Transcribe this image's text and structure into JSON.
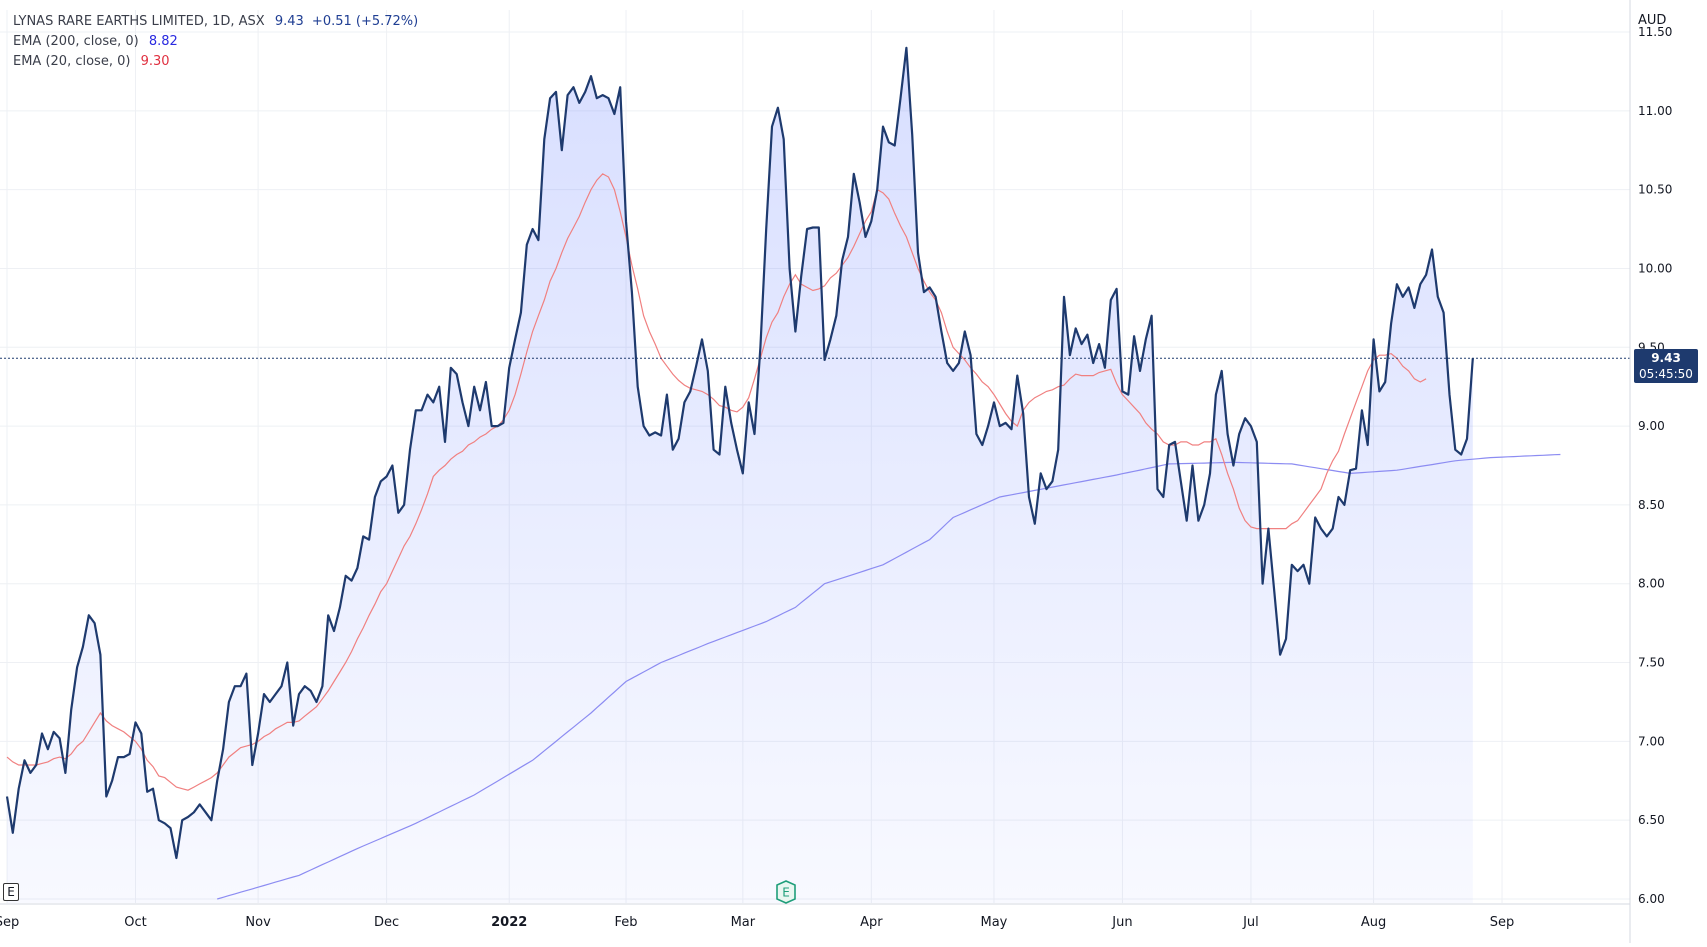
{
  "header": {
    "symbol": "LYNAS RARE EARTHS LIMITED, 1D, ASX",
    "last": "9.43",
    "change": "+0.51 (+5.72%)",
    "ema200_label": "EMA (200, close, 0)",
    "ema200_value": "8.82",
    "ema20_label": "EMA (20, close, 0)",
    "ema20_value": "9.30"
  },
  "currency": "AUD",
  "price_tag": {
    "price": "9.43",
    "countdown": "05:45:50"
  },
  "left_badge": "E",
  "earnings_badge": "E",
  "colors": {
    "price_line": "#1e3a6e",
    "area_fill": "#4d6bff",
    "ema20": "#f08080",
    "ema200": "#8c8cf2",
    "grid": "#eef0f4",
    "axis_text": "#131722"
  },
  "chart_data": {
    "type": "area",
    "title": "LYNAS RARE EARTHS LIMITED, 1D, ASX",
    "y_axis": {
      "min": 6.0,
      "max": 11.5,
      "ticks": [
        "6.00",
        "6.50",
        "7.00",
        "7.50",
        "8.00",
        "8.50",
        "9.00",
        "9.50",
        "10.00",
        "10.50",
        "11.00",
        "11.50"
      ],
      "side": "right",
      "unit": "AUD"
    },
    "x_ticks": [
      "Sep",
      "Oct",
      "Nov",
      "Dec",
      "2022",
      "Feb",
      "Mar",
      "Apr",
      "May",
      "Jun",
      "Jul",
      "Aug",
      "Sep"
    ],
    "x_tick_idx": [
      0,
      22,
      43,
      65,
      86,
      106,
      126,
      148,
      169,
      191,
      213,
      234,
      256
    ],
    "grid": true,
    "series": [
      {
        "name": "LYNAS RARE EARTHS LIMITED",
        "values": [
          6.65,
          6.42,
          6.7,
          6.88,
          6.8,
          6.85,
          7.05,
          6.95,
          7.06,
          7.02,
          6.8,
          7.2,
          7.47,
          7.6,
          7.8,
          7.75,
          7.55,
          6.65,
          6.75,
          6.9,
          6.9,
          6.92,
          7.12,
          7.05,
          6.68,
          6.7,
          6.5,
          6.48,
          6.45,
          6.26,
          6.5,
          6.52,
          6.55,
          6.6,
          6.55,
          6.5,
          6.75,
          6.95,
          7.25,
          7.35,
          7.35,
          7.43,
          6.85,
          7.05,
          7.3,
          7.25,
          7.3,
          7.35,
          7.5,
          7.1,
          7.3,
          7.35,
          7.32,
          7.25,
          7.35,
          7.8,
          7.7,
          7.85,
          8.05,
          8.02,
          8.1,
          8.3,
          8.28,
          8.55,
          8.65,
          8.68,
          8.75,
          8.45,
          8.5,
          8.85,
          9.1,
          9.1,
          9.2,
          9.15,
          9.25,
          8.9,
          9.37,
          9.33,
          9.15,
          9.0,
          9.25,
          9.1,
          9.28,
          9.0,
          9.0,
          9.02,
          9.37,
          9.55,
          9.72,
          10.15,
          10.25,
          10.18,
          10.82,
          11.08,
          11.12,
          10.75,
          11.1,
          11.15,
          11.05,
          11.12,
          11.22,
          11.08,
          11.1,
          11.08,
          10.98,
          11.15,
          10.3,
          9.85,
          9.25,
          9.0,
          8.94,
          8.96,
          8.94,
          9.2,
          8.85,
          8.92,
          9.15,
          9.22,
          9.38,
          9.55,
          9.35,
          8.85,
          8.82,
          9.25,
          9.02,
          8.85,
          8.7,
          9.15,
          8.95,
          9.5,
          10.25,
          10.9,
          11.02,
          10.82,
          10.0,
          9.6,
          9.95,
          10.25,
          10.26,
          10.26,
          9.42,
          9.55,
          9.7,
          10.05,
          10.2,
          10.6,
          10.42,
          10.2,
          10.3,
          10.5,
          10.9,
          10.8,
          10.78,
          11.08,
          11.4,
          10.85,
          10.1,
          9.85,
          9.88,
          9.82,
          9.6,
          9.4,
          9.35,
          9.4,
          9.6,
          9.45,
          8.95,
          8.88,
          9.0,
          9.15,
          9.0,
          9.02,
          8.98,
          9.32,
          9.08,
          8.55,
          8.38,
          8.7,
          8.6,
          8.65,
          8.85,
          9.82,
          9.45,
          9.62,
          9.52,
          9.58,
          9.4,
          9.52,
          9.37,
          9.8,
          9.87,
          9.22,
          9.2,
          9.57,
          9.35,
          9.55,
          9.7,
          8.6,
          8.55,
          8.88,
          8.9,
          8.65,
          8.4,
          8.75,
          8.4,
          8.5,
          8.7,
          9.2,
          9.35,
          8.95,
          8.75,
          8.95,
          9.05,
          9.0,
          8.9,
          8.0,
          8.35,
          7.95,
          7.55,
          7.65,
          8.12,
          8.08,
          8.12,
          8.0,
          8.42,
          8.35,
          8.3,
          8.35,
          8.55,
          8.5,
          8.72,
          8.73,
          9.1,
          8.88,
          9.55,
          9.22,
          9.28,
          9.65,
          9.9,
          9.82,
          9.88,
          9.75,
          9.9,
          9.96,
          10.12,
          9.82,
          9.72,
          9.2,
          8.85,
          8.82,
          8.92,
          9.43
        ]
      },
      {
        "name": "EMA (20, close, 0)",
        "values": [
          6.9,
          6.87,
          6.85,
          6.85,
          6.85,
          6.85,
          6.86,
          6.87,
          6.89,
          6.9,
          6.89,
          6.92,
          6.97,
          7.0,
          7.06,
          7.12,
          7.18,
          7.13,
          7.1,
          7.08,
          7.06,
          7.03,
          7.0,
          6.95,
          6.88,
          6.84,
          6.78,
          6.77,
          6.74,
          6.71,
          6.7,
          6.69,
          6.71,
          6.73,
          6.75,
          6.77,
          6.8,
          6.85,
          6.9,
          6.93,
          6.96,
          6.97,
          6.98,
          7.0,
          7.03,
          7.05,
          7.08,
          7.1,
          7.12,
          7.12,
          7.13,
          7.16,
          7.19,
          7.22,
          7.27,
          7.32,
          7.38,
          7.44,
          7.5,
          7.57,
          7.65,
          7.72,
          7.8,
          7.87,
          7.95,
          8.0,
          8.08,
          8.16,
          8.24,
          8.3,
          8.38,
          8.47,
          8.57,
          8.68,
          8.72,
          8.75,
          8.79,
          8.82,
          8.84,
          8.88,
          8.9,
          8.93,
          8.95,
          8.98,
          9.0,
          9.04,
          9.1,
          9.2,
          9.33,
          9.47,
          9.6,
          9.7,
          9.8,
          9.92,
          10.0,
          10.1,
          10.19,
          10.26,
          10.33,
          10.42,
          10.5,
          10.56,
          10.6,
          10.58,
          10.5,
          10.36,
          10.2,
          10.02,
          9.87,
          9.7,
          9.6,
          9.52,
          9.43,
          9.38,
          9.33,
          9.29,
          9.26,
          9.24,
          9.23,
          9.22,
          9.2,
          9.17,
          9.13,
          9.12,
          9.1,
          9.09,
          9.12,
          9.18,
          9.3,
          9.43,
          9.56,
          9.66,
          9.72,
          9.82,
          9.9,
          9.96,
          9.9,
          9.88,
          9.86,
          9.87,
          9.89,
          9.94,
          9.97,
          10.02,
          10.07,
          10.14,
          10.22,
          10.3,
          10.36,
          10.5,
          10.48,
          10.44,
          10.35,
          10.27,
          10.2,
          10.1,
          10.0,
          9.92,
          9.85,
          9.8,
          9.72,
          9.6,
          9.5,
          9.46,
          9.42,
          9.37,
          9.33,
          9.28,
          9.25,
          9.2,
          9.14,
          9.08,
          9.03,
          9.0,
          9.1,
          9.15,
          9.18,
          9.2,
          9.22,
          9.23,
          9.25,
          9.26,
          9.3,
          9.33,
          9.32,
          9.32,
          9.32,
          9.34,
          9.35,
          9.36,
          9.27,
          9.2,
          9.16,
          9.12,
          9.08,
          9.02,
          8.98,
          8.95,
          8.9,
          8.88,
          8.88,
          8.9,
          8.9,
          8.88,
          8.88,
          8.9,
          8.9,
          8.92,
          8.82,
          8.7,
          8.6,
          8.48,
          8.4,
          8.36,
          8.35,
          8.35,
          8.35,
          8.35,
          8.35,
          8.35,
          8.38,
          8.4,
          8.45,
          8.5,
          8.55,
          8.6,
          8.7,
          8.78,
          8.84,
          8.95,
          9.05,
          9.15,
          9.25,
          9.35,
          9.42,
          9.45,
          9.45,
          9.46,
          9.43,
          9.38,
          9.35,
          9.3,
          9.28,
          9.3
        ]
      },
      {
        "name": "EMA (200, close, 0)",
        "x_start": 36,
        "x_end": 266,
        "start": 6.0,
        "end": 8.82,
        "keypoints": [
          [
            36,
            6.0
          ],
          [
            50,
            6.15
          ],
          [
            60,
            6.32
          ],
          [
            70,
            6.48
          ],
          [
            80,
            6.66
          ],
          [
            90,
            6.88
          ],
          [
            100,
            7.18
          ],
          [
            106,
            7.38
          ],
          [
            112,
            7.5
          ],
          [
            120,
            7.62
          ],
          [
            130,
            7.76
          ],
          [
            135,
            7.85
          ],
          [
            140,
            8.0
          ],
          [
            150,
            8.12
          ],
          [
            158,
            8.28
          ],
          [
            162,
            8.42
          ],
          [
            170,
            8.55
          ],
          [
            180,
            8.62
          ],
          [
            190,
            8.69
          ],
          [
            199,
            8.76
          ],
          [
            210,
            8.77
          ],
          [
            220,
            8.76
          ],
          [
            230,
            8.7
          ],
          [
            238,
            8.72
          ],
          [
            248,
            8.78
          ],
          [
            254,
            8.8
          ],
          [
            266,
            8.82
          ]
        ]
      }
    ],
    "last_price": 9.43
  }
}
